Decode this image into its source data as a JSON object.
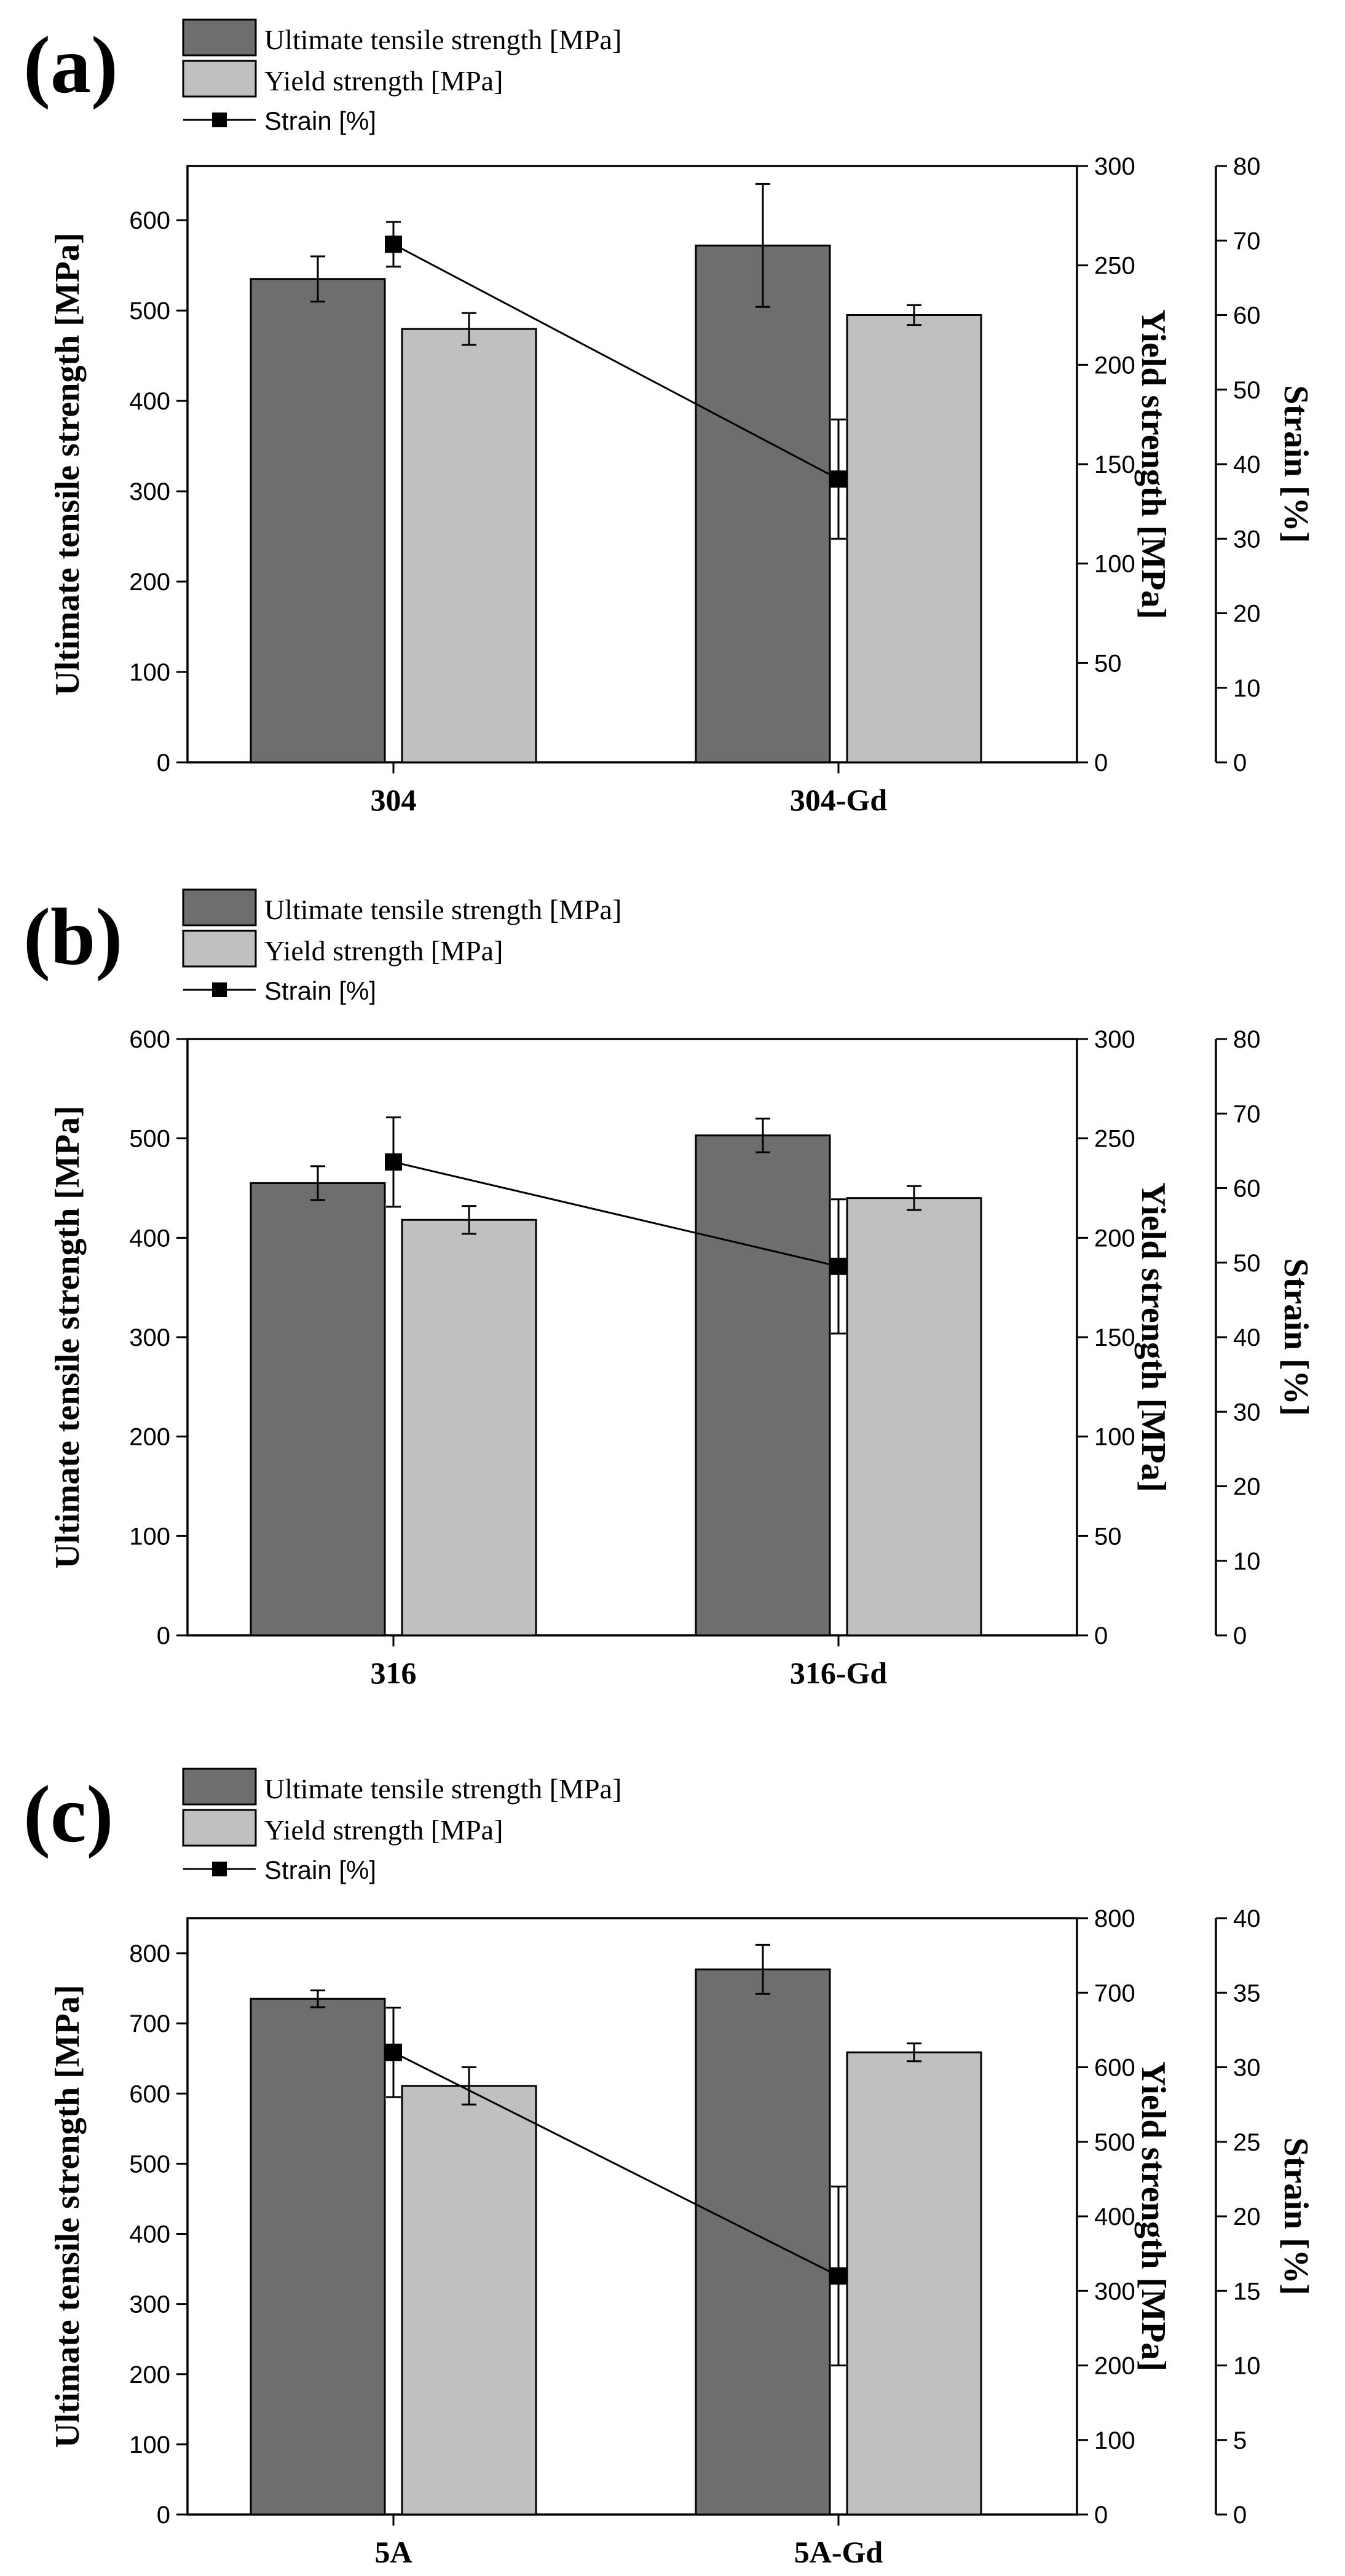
{
  "colors": {
    "uts_bar": "#6e6e6e",
    "ys_bar": "#c0c0c0",
    "axis": "#000000",
    "strain_line": "#000000",
    "background": "#ffffff"
  },
  "chart_data": [
    {
      "panel_label": "(a)",
      "type": "bar",
      "categories": [
        "304",
        "304-Gd"
      ],
      "legend": [
        "Ultimate tensile strength [MPa]",
        "Yield strength [MPa]",
        "Strain [%]"
      ],
      "left_axis": {
        "label": "Ultimate tensile strength [MPa]",
        "ylim": [
          0,
          660
        ],
        "ticks": [
          0,
          100,
          200,
          300,
          400,
          500,
          600
        ]
      },
      "right_axis_1": {
        "label": "Yield strength [MPa]",
        "ylim": [
          0,
          300
        ],
        "ticks": [
          0,
          50,
          100,
          150,
          200,
          250,
          300
        ]
      },
      "right_axis_2": {
        "label": "Strain [%]",
        "ylim": [
          0,
          80
        ],
        "ticks": [
          0,
          10,
          20,
          30,
          40,
          50,
          60,
          70,
          80
        ]
      },
      "series": [
        {
          "name": "Ultimate tensile strength [MPa]",
          "axis": "left",
          "kind": "bar",
          "values": [
            535,
            572
          ],
          "errors": [
            25,
            68
          ]
        },
        {
          "name": "Yield strength [MPa]",
          "axis": "right1",
          "kind": "bar",
          "values": [
            218,
            225
          ],
          "errors": [
            8,
            5
          ]
        },
        {
          "name": "Strain [%]",
          "axis": "right2",
          "kind": "line",
          "values": [
            69.5,
            38
          ],
          "errors": [
            3,
            8
          ]
        }
      ]
    },
    {
      "panel_label": "(b)",
      "type": "bar",
      "categories": [
        "316",
        "316-Gd"
      ],
      "legend": [
        "Ultimate tensile strength [MPa]",
        "Yield strength [MPa]",
        "Strain [%]"
      ],
      "left_axis": {
        "label": "Ultimate tensile strength [MPa]",
        "ylim": [
          0,
          600
        ],
        "ticks": [
          0,
          100,
          200,
          300,
          400,
          500,
          600
        ]
      },
      "right_axis_1": {
        "label": "Yield strength [MPa]",
        "ylim": [
          0,
          300
        ],
        "ticks": [
          0,
          50,
          100,
          150,
          200,
          250,
          300
        ]
      },
      "right_axis_2": {
        "label": "Strain [%]",
        "ylim": [
          0,
          80
        ],
        "ticks": [
          0,
          10,
          20,
          30,
          40,
          50,
          60,
          70,
          80
        ]
      },
      "series": [
        {
          "name": "Ultimate tensile strength [MPa]",
          "axis": "left",
          "kind": "bar",
          "values": [
            455,
            503
          ],
          "errors": [
            17,
            17
          ]
        },
        {
          "name": "Yield strength [MPa]",
          "axis": "right1",
          "kind": "bar",
          "values": [
            209,
            220
          ],
          "errors": [
            7,
            6
          ]
        },
        {
          "name": "Strain [%]",
          "axis": "right2",
          "kind": "line",
          "values": [
            63.5,
            49.5
          ],
          "errors": [
            6,
            9
          ]
        }
      ]
    },
    {
      "panel_label": "(c)",
      "type": "bar",
      "categories": [
        "5A",
        "5A-Gd"
      ],
      "legend": [
        "Ultimate tensile strength [MPa]",
        "Yield strength [MPa]",
        "Strain [%]"
      ],
      "left_axis": {
        "label": "Ultimate tensile strength [MPa]",
        "ylim": [
          0,
          850
        ],
        "ticks": [
          0,
          100,
          200,
          300,
          400,
          500,
          600,
          700,
          800
        ]
      },
      "right_axis_1": {
        "label": "Yield strength [MPa]",
        "ylim": [
          0,
          800
        ],
        "ticks": [
          0,
          100,
          200,
          300,
          400,
          500,
          600,
          700,
          800
        ]
      },
      "right_axis_2": {
        "label": "Strain [%]",
        "ylim": [
          0,
          40
        ],
        "ticks": [
          0,
          5,
          10,
          15,
          20,
          25,
          30,
          35,
          40
        ]
      },
      "series": [
        {
          "name": "Ultimate tensile strength [MPa]",
          "axis": "left",
          "kind": "bar",
          "values": [
            735,
            777
          ],
          "errors": [
            12,
            35
          ]
        },
        {
          "name": "Yield strength [MPa]",
          "axis": "right1",
          "kind": "bar",
          "values": [
            575,
            620
          ],
          "errors": [
            25,
            12
          ]
        },
        {
          "name": "Strain [%]",
          "axis": "right2",
          "kind": "line",
          "values": [
            31,
            16
          ],
          "errors": [
            3,
            6
          ]
        }
      ]
    }
  ]
}
